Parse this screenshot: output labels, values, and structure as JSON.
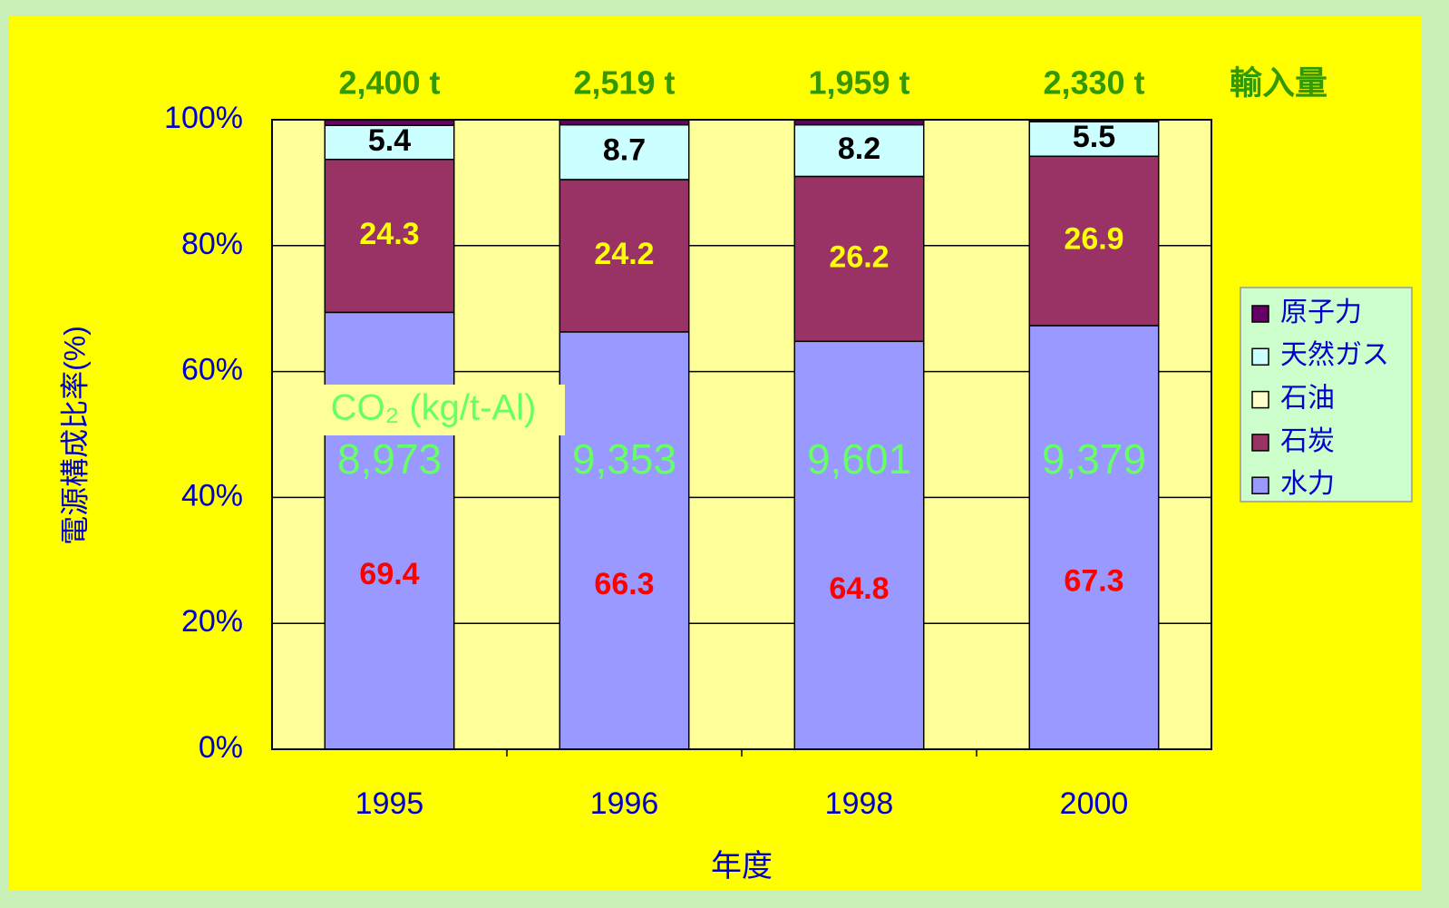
{
  "chart_data": {
    "type": "stacked_bar",
    "categories": [
      "1995",
      "1996",
      "1998",
      "2000"
    ],
    "series": [
      {
        "name": "水力",
        "color": "#9999ff",
        "label_color": "#ff0000",
        "values": [
          69.4,
          66.3,
          64.8,
          67.3
        ]
      },
      {
        "name": "石炭",
        "color": "#993366",
        "label_color": "#ffff00",
        "values": [
          24.3,
          24.2,
          26.2,
          26.9
        ]
      },
      {
        "name": "石油",
        "color": "#ffffcc",
        "values": [
          0,
          0,
          0,
          0
        ]
      },
      {
        "name": "天然ガス",
        "color": "#ccffff",
        "label_color": "#000000",
        "values": [
          5.4,
          8.7,
          8.2,
          5.5
        ]
      },
      {
        "name": "原子力",
        "color": "#660066",
        "values": [
          0.9,
          0.8,
          0.8,
          0.3
        ]
      }
    ],
    "ylim": [
      0,
      100
    ],
    "yticks": [
      {
        "value": 0,
        "label": "0%"
      },
      {
        "value": 20,
        "label": "20%"
      },
      {
        "value": 40,
        "label": "40%"
      },
      {
        "value": 60,
        "label": "60%"
      },
      {
        "value": 80,
        "label": "80%"
      },
      {
        "value": 100,
        "label": "100%"
      }
    ],
    "grid": true,
    "y_label": "電源構成比率(%)",
    "x_label": "年度",
    "legend": "right",
    "imports": {
      "label": "輸入量",
      "values": [
        2400,
        2519,
        1959,
        2330
      ],
      "value_labels": [
        "2,400 t",
        "2,519 t",
        "1,959 t",
        "2,330 t"
      ]
    },
    "co2": {
      "label": "CO₂ (kg/t-Al)",
      "values": [
        8973,
        9353,
        9601,
        9379
      ],
      "value_labels": [
        "8,973",
        "9,353",
        "9,601",
        "9,379"
      ]
    }
  }
}
